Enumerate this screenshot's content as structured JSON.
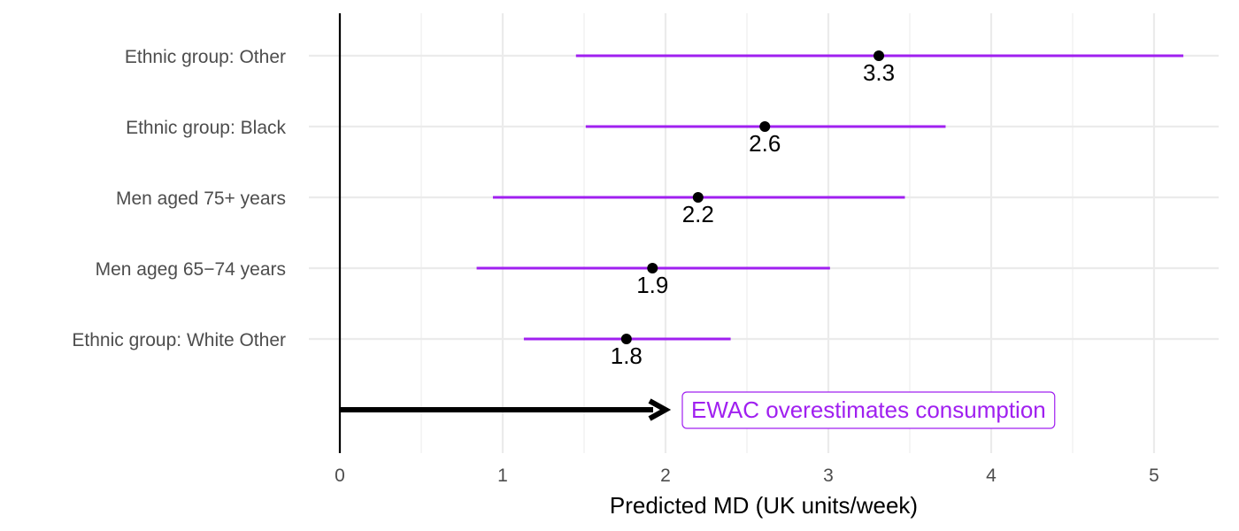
{
  "chart_data": {
    "type": "forest",
    "categories": [
      "Ethnic group: Other",
      "Ethnic group: Black",
      "Men aged 75+ years",
      "Men ageg 65−74 years",
      "Ethnic group: White Other"
    ],
    "estimates": [
      3.31,
      2.61,
      2.2,
      1.92,
      1.76
    ],
    "lower": [
      1.45,
      1.51,
      0.94,
      0.84,
      1.13
    ],
    "upper": [
      5.18,
      3.72,
      3.47,
      3.01,
      2.4
    ],
    "data_labels": [
      "3.3",
      "2.6",
      "2.2",
      "1.9",
      "1.8"
    ],
    "xlabel": "Predicted MD (UK units/week)",
    "ylabel": "",
    "xlim": [
      0,
      5.3
    ],
    "x_ticks": [
      0,
      1,
      2,
      3,
      4,
      5
    ],
    "x_tick_labels": [
      "0",
      "1",
      "2",
      "3",
      "4",
      "5"
    ],
    "grid": true,
    "reference_line_x": 0,
    "annotation": {
      "arrow_from": 0,
      "arrow_to": 2,
      "text": "EWAC overestimates consumption"
    },
    "colors": {
      "interval": "#a020f0",
      "point": "#000000",
      "annotation": "#a020f0",
      "grid": "#ebebeb"
    }
  }
}
